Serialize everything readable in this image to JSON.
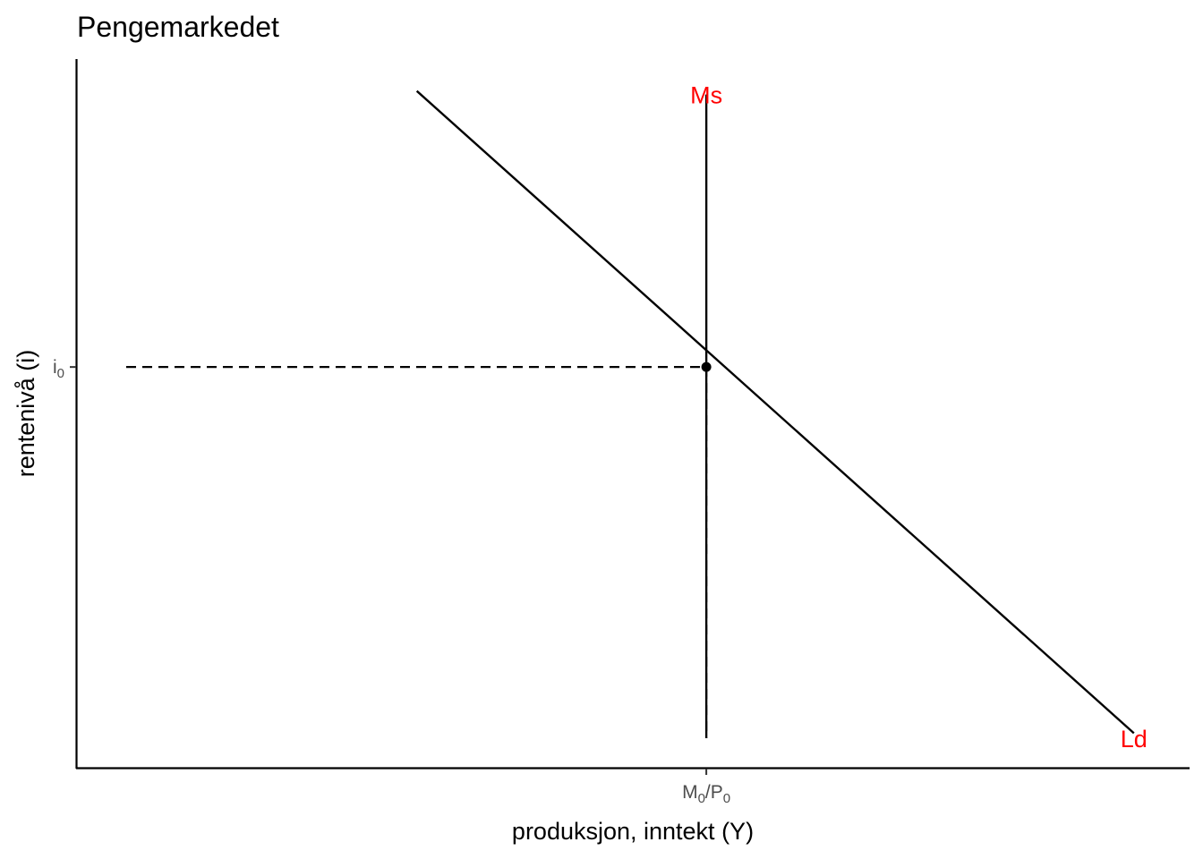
{
  "chart_data": {
    "type": "line",
    "title": "Pengemarkedet",
    "xlabel": "produksjon, inntekt (Y)",
    "ylabel": "rentenivå (i)",
    "grid": false,
    "xlim": [
      0,
      10
    ],
    "ylim": [
      0,
      10
    ],
    "x_ticks": [
      {
        "value": 5.66,
        "main": "M",
        "sub1": "0",
        "sep": "/P",
        "sub2": "0"
      }
    ],
    "y_ticks": [
      {
        "value": 5.66,
        "main": "i",
        "sub": "0"
      }
    ],
    "series": [
      {
        "name": "Ms",
        "color": "#000000",
        "label_color": "#ff0000",
        "points": [
          [
            5.66,
            9.5
          ],
          [
            5.66,
            0.43
          ]
        ],
        "label_at": [
          5.66,
          9.5
        ]
      },
      {
        "name": "Ld",
        "color": "#000000",
        "label_color": "#ff0000",
        "points": [
          [
            3.06,
            9.55
          ],
          [
            9.5,
            0.5
          ]
        ],
        "label_at": [
          9.5,
          0.43
        ]
      }
    ],
    "guides": [
      {
        "style": "dashed",
        "points": [
          [
            0.45,
            5.66
          ],
          [
            5.66,
            5.66
          ]
        ]
      },
      {
        "style": "dashed",
        "points": [
          [
            5.66,
            5.66
          ],
          [
            5.66,
            0.43
          ]
        ]
      }
    ],
    "equilibrium": {
      "x": 5.66,
      "y": 5.66,
      "color": "#000000"
    }
  }
}
